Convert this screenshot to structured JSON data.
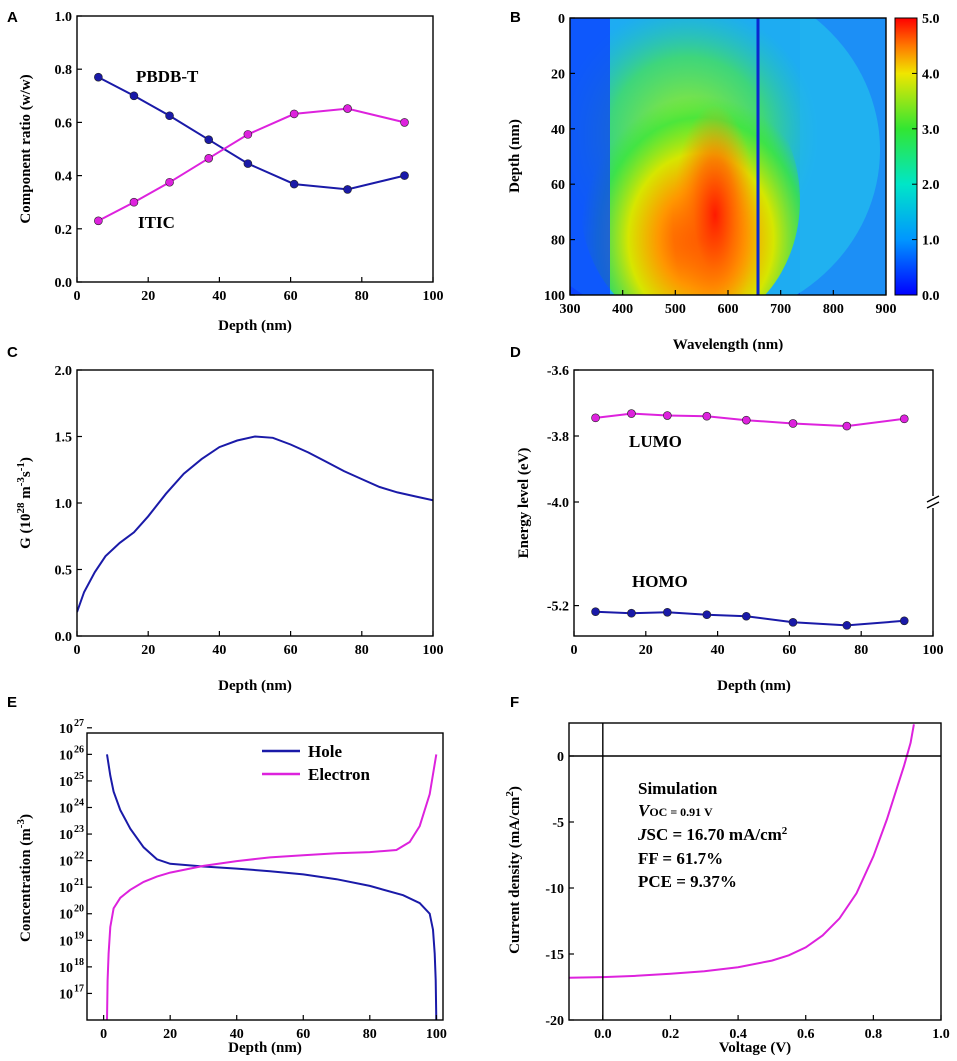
{
  "colors": {
    "blue": "#1a1aa8",
    "magenta": "#dd22dd",
    "axis": "#000000"
  },
  "chart_data": [
    {
      "id": "A",
      "panel_label": "A",
      "type": "line",
      "xlabel": "Depth (nm)",
      "ylabel": "Component ratio (w/w)",
      "xlim": [
        0,
        100
      ],
      "ylim": [
        0,
        1.0
      ],
      "xticks": [
        "0",
        "20",
        "40",
        "60",
        "80",
        "100"
      ],
      "yticks": [
        "0.0",
        "0.2",
        "0.4",
        "0.6",
        "0.8",
        "1.0"
      ],
      "series": [
        {
          "name": "PBDB-T",
          "color": "#1a1aa8",
          "x": [
            6,
            16,
            26,
            37,
            48,
            61,
            76,
            92
          ],
          "y": [
            0.77,
            0.7,
            0.625,
            0.535,
            0.445,
            0.368,
            0.348,
            0.4
          ]
        },
        {
          "name": "ITIC",
          "color": "#dd22dd",
          "x": [
            6,
            16,
            26,
            37,
            48,
            61,
            76,
            92
          ],
          "y": [
            0.23,
            0.3,
            0.375,
            0.465,
            0.555,
            0.632,
            0.652,
            0.6
          ]
        }
      ],
      "annotations": [
        "PBDB-T",
        "ITIC"
      ]
    },
    {
      "id": "B",
      "panel_label": "B",
      "type": "heatmap",
      "xlabel": "Wavelength (nm)",
      "ylabel": "Depth (nm)",
      "xlim": [
        300,
        900
      ],
      "ylim": [
        0,
        100
      ],
      "xticks": [
        "300",
        "400",
        "500",
        "600",
        "700",
        "800",
        "900"
      ],
      "yticks": [
        "0",
        "20",
        "40",
        "60",
        "80",
        "100"
      ],
      "colorbar": {
        "range": [
          0,
          5.0
        ],
        "ticks": [
          "0.0",
          "1.0",
          "2.0",
          "3.0",
          "4.0",
          "5.0"
        ]
      }
    },
    {
      "id": "C",
      "panel_label": "C",
      "type": "line",
      "xlabel": "Depth (nm)",
      "ylabel": "G (10",
      "ylabel_sup1": "28",
      "ylabel_mid": " m",
      "ylabel_sup2": "-3",
      "ylabel_mid2": "s",
      "ylabel_sup3": "-1",
      "ylabel_end": ")",
      "xlim": [
        0,
        100
      ],
      "ylim": [
        0,
        2.0
      ],
      "xticks": [
        "0",
        "20",
        "40",
        "60",
        "80",
        "100"
      ],
      "yticks": [
        "0.0",
        "0.5",
        "1.0",
        "1.5",
        "2.0"
      ],
      "series": [
        {
          "name": "G",
          "color": "#1a1aa8",
          "x": [
            0,
            2,
            5,
            8,
            12,
            16,
            20,
            25,
            30,
            35,
            40,
            45,
            50,
            55,
            60,
            65,
            70,
            75,
            80,
            85,
            90,
            95,
            100
          ],
          "y": [
            0.18,
            0.33,
            0.48,
            0.6,
            0.7,
            0.78,
            0.9,
            1.07,
            1.22,
            1.33,
            1.42,
            1.47,
            1.5,
            1.49,
            1.44,
            1.38,
            1.31,
            1.24,
            1.18,
            1.12,
            1.08,
            1.05,
            1.02
          ]
        }
      ]
    },
    {
      "id": "D",
      "panel_label": "D",
      "type": "line",
      "xlabel": "Depth (nm)",
      "ylabel": "Energy level (eV)",
      "xlim": [
        0,
        100
      ],
      "xticks": [
        "0",
        "20",
        "40",
        "60",
        "80",
        "100"
      ],
      "yticks": [
        "-3.6",
        "-3.8",
        "-4.0",
        "-5.2"
      ],
      "broken_axis": true,
      "series": [
        {
          "name": "LUMO",
          "color": "#dd22dd",
          "x": [
            6,
            16,
            26,
            37,
            48,
            61,
            76,
            92
          ],
          "y": [
            -3.745,
            -3.732,
            -3.738,
            -3.74,
            -3.752,
            -3.762,
            -3.77,
            -3.748
          ]
        },
        {
          "name": "HOMO",
          "color": "#1a1aa8",
          "x": [
            6,
            16,
            26,
            37,
            48,
            61,
            76,
            92
          ],
          "y": [
            -5.22,
            -5.225,
            -5.222,
            -5.23,
            -5.235,
            -5.255,
            -5.265,
            -5.25
          ]
        }
      ],
      "annotations": [
        "LUMO",
        "HOMO"
      ]
    },
    {
      "id": "E",
      "panel_label": "E",
      "type": "line",
      "xlabel": "Depth (nm)",
      "ylabel": "Concentration (m",
      "ylabel_sup": "-3",
      "ylabel_end": ")",
      "xlim": [
        -5,
        102
      ],
      "ylim_log10": [
        16,
        27
      ],
      "xticks": [
        "0",
        "20",
        "40",
        "60",
        "80",
        "100"
      ],
      "ytick_base": "10",
      "ytick_exponents": [
        "17",
        "18",
        "19",
        "20",
        "21",
        "22",
        "23",
        "24",
        "25",
        "26",
        "27"
      ],
      "legend": [
        "Hole",
        "Electron"
      ],
      "series": [
        {
          "name": "Hole",
          "color": "#1a1aa8",
          "x": [
            1,
            2,
            3,
            5,
            8,
            12,
            16,
            20,
            30,
            40,
            50,
            60,
            70,
            80,
            90,
            95,
            98,
            99,
            99.5,
            99.8,
            100
          ],
          "log10y": [
            26.0,
            25.2,
            24.6,
            23.9,
            23.2,
            22.5,
            22.05,
            21.88,
            21.78,
            21.7,
            21.6,
            21.48,
            21.3,
            21.05,
            20.7,
            20.4,
            20.0,
            19.4,
            18.5,
            17.5,
            16.0
          ]
        },
        {
          "name": "Electron",
          "color": "#dd22dd",
          "x": [
            1,
            1.2,
            1.5,
            2,
            3,
            5,
            8,
            12,
            16,
            20,
            30,
            40,
            50,
            60,
            70,
            80,
            88,
            92,
            95,
            98,
            100
          ],
          "log10y": [
            16.0,
            17.5,
            18.5,
            19.5,
            20.2,
            20.6,
            20.9,
            21.2,
            21.4,
            21.55,
            21.8,
            21.98,
            22.12,
            22.2,
            22.28,
            22.32,
            22.4,
            22.7,
            23.3,
            24.5,
            26.0
          ]
        }
      ]
    },
    {
      "id": "F",
      "panel_label": "F",
      "type": "line",
      "xlabel": "Voltage (V)",
      "ylabel": "Current density (mA/cm",
      "ylabel_sup": "2",
      "ylabel_end": ")",
      "xlim": [
        -0.1,
        1.0
      ],
      "ylim": [
        -20,
        2.5
      ],
      "xticks": [
        "0.0",
        "0.2",
        "0.4",
        "0.6",
        "0.8",
        "1.0"
      ],
      "yticks": [
        "-20",
        "-15",
        "-10",
        "-5",
        "0"
      ],
      "series": [
        {
          "name": "Simulation",
          "color": "#dd22dd",
          "x": [
            -0.1,
            0.0,
            0.1,
            0.2,
            0.3,
            0.4,
            0.5,
            0.55,
            0.6,
            0.65,
            0.7,
            0.75,
            0.8,
            0.84,
            0.87,
            0.89,
            0.91,
            0.92
          ],
          "y": [
            -16.8,
            -16.75,
            -16.65,
            -16.5,
            -16.3,
            -16.0,
            -15.5,
            -15.1,
            -14.5,
            -13.6,
            -12.3,
            -10.4,
            -7.6,
            -4.8,
            -2.4,
            -0.8,
            1.0,
            2.4
          ]
        }
      ],
      "annotation": {
        "title": "Simulation",
        "voc": "OC = 0.91 V",
        "voc_sym": "V",
        "jsc": "SC = 16.70 mA/cm",
        "jsc_sym": "J",
        "jsc_sup": "2",
        "ff": "FF = 61.7%",
        "pce": "PCE = 9.37%"
      }
    }
  ]
}
